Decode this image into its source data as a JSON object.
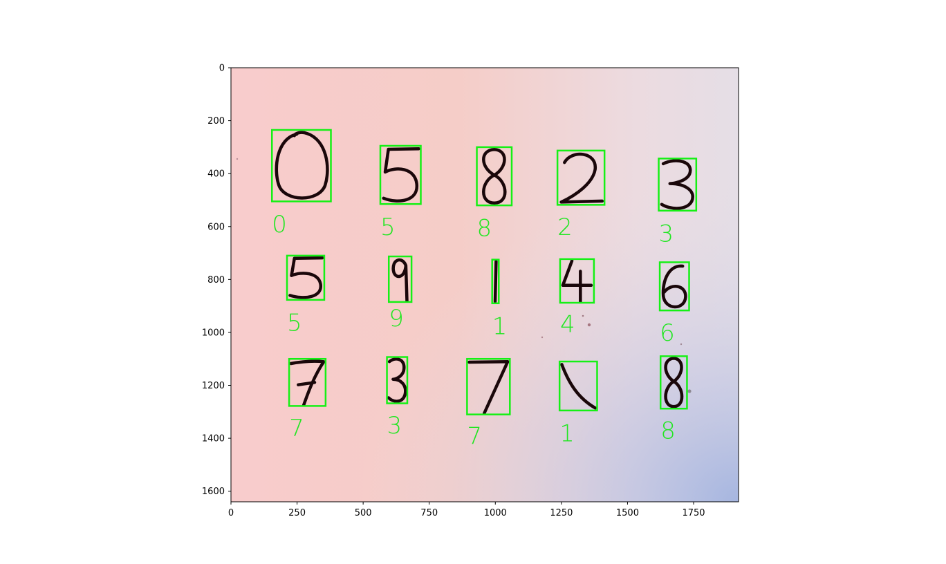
{
  "figure": {
    "xaxis": {
      "ticks": [
        0,
        250,
        500,
        750,
        1000,
        1250,
        1500,
        1750
      ],
      "range": [
        0,
        1920
      ]
    },
    "yaxis": {
      "ticks": [
        0,
        200,
        400,
        600,
        800,
        1000,
        1200,
        1400,
        1600
      ],
      "range": [
        0,
        1640
      ],
      "inverted": true
    },
    "colors": {
      "box": "#15f015",
      "label": "#22e622",
      "ink": "#1a070a"
    }
  },
  "detections": [
    {
      "digit": "0",
      "label": "0",
      "x0": 155,
      "y0": 235,
      "x1": 378,
      "y1": 505,
      "lx": 155,
      "ly": 590
    },
    {
      "digit": "5",
      "label": "5",
      "x0": 565,
      "y0": 295,
      "x1": 718,
      "y1": 515,
      "lx": 565,
      "ly": 600
    },
    {
      "digit": "8",
      "label": "8",
      "x0": 930,
      "y0": 300,
      "x1": 1062,
      "y1": 520,
      "lx": 930,
      "ly": 605
    },
    {
      "digit": "2",
      "label": "2",
      "x0": 1235,
      "y0": 313,
      "x1": 1413,
      "y1": 518,
      "lx": 1235,
      "ly": 600
    },
    {
      "digit": "3",
      "label": "3",
      "x0": 1618,
      "y0": 343,
      "x1": 1760,
      "y1": 540,
      "lx": 1618,
      "ly": 625
    },
    {
      "digit": "5",
      "label": "5",
      "x0": 212,
      "y0": 710,
      "x1": 353,
      "y1": 877,
      "lx": 212,
      "ly": 962
    },
    {
      "digit": "9",
      "label": "9",
      "x0": 597,
      "y0": 713,
      "x1": 683,
      "y1": 885,
      "lx": 597,
      "ly": 945
    },
    {
      "digit": "1",
      "label": "1",
      "x0": 988,
      "y0": 725,
      "x1": 1013,
      "y1": 890,
      "lx": 988,
      "ly": 975
    },
    {
      "digit": "4",
      "label": "4",
      "x0": 1245,
      "y0": 723,
      "x1": 1373,
      "y1": 888,
      "lx": 1245,
      "ly": 968
    },
    {
      "digit": "6",
      "label": "6",
      "x0": 1622,
      "y0": 735,
      "x1": 1733,
      "y1": 917,
      "lx": 1622,
      "ly": 1000
    },
    {
      "digit": "7",
      "label": "7",
      "x0": 220,
      "y0": 1100,
      "x1": 358,
      "y1": 1278,
      "lx": 220,
      "ly": 1360
    },
    {
      "digit": "3",
      "label": "3",
      "x0": 590,
      "y0": 1093,
      "x1": 667,
      "y1": 1268,
      "lx": 590,
      "ly": 1350
    },
    {
      "digit": "7",
      "label": "7",
      "x0": 893,
      "y0": 1100,
      "x1": 1055,
      "y1": 1310,
      "lx": 893,
      "ly": 1390
    },
    {
      "digit": "1",
      "label": "1",
      "x0": 1243,
      "y0": 1110,
      "x1": 1385,
      "y1": 1295,
      "lx": 1243,
      "ly": 1380
    },
    {
      "digit": "8",
      "label": "8",
      "x0": 1625,
      "y0": 1090,
      "x1": 1725,
      "y1": 1288,
      "lx": 1625,
      "ly": 1370
    }
  ]
}
